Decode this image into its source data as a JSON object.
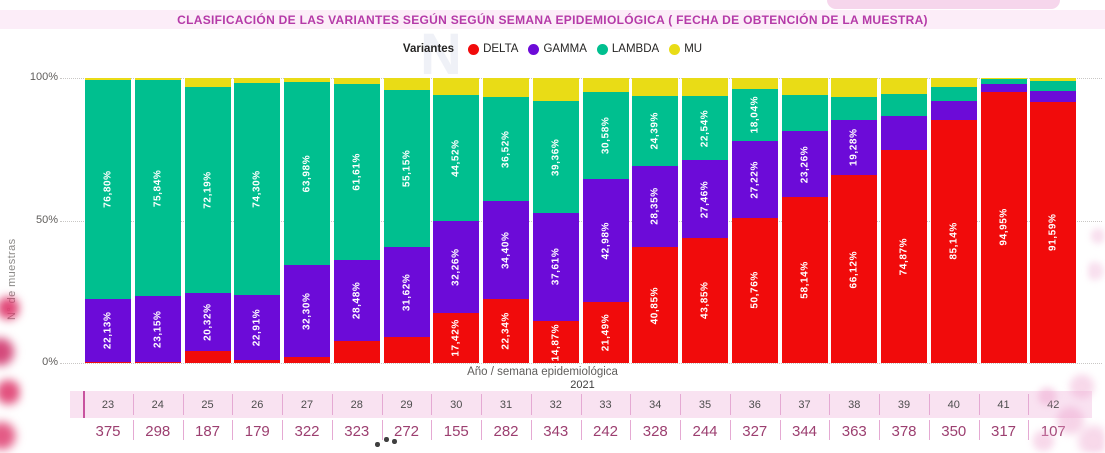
{
  "header": {
    "title": "CLASIFICACIÓN DE LAS VARIANTES SEGÚN SEGÚN SEMANA EPIDEMIOLÓGICA ( FECHA DE OBTENCIÓN DE LA MUESTRA)"
  },
  "chart_data": {
    "type": "bar",
    "subtype": "100%-stacked-column",
    "title": "CLASIFICACIÓN DE LAS VARIANTES SEGÚN SEGÚN SEMANA EPIDEMIOLÓGICA ( FECHA DE OBTENCIÓN DE LA MUESTRA)",
    "legend_title": "Variantes",
    "legend_position": "top-center",
    "ylabel": "N° de muestras",
    "xlabel": "Año / semana epidemiológica",
    "year": "2021",
    "yticks": [
      "100%",
      "50%",
      "0%"
    ],
    "ylim": [
      0,
      100
    ],
    "grid": "dotted-horizontal",
    "series_order": [
      "DELTA",
      "GAMMA",
      "LAMBDA",
      "MU"
    ],
    "colors": {
      "DELTA": "#f10b0b",
      "GAMMA": "#6c0bd8",
      "LAMBDA": "#00bf8f",
      "MU": "#e9dc16"
    },
    "categories": [
      "23",
      "24",
      "25",
      "26",
      "27",
      "28",
      "29",
      "30",
      "31",
      "32",
      "33",
      "34",
      "35",
      "36",
      "37",
      "38",
      "39",
      "40",
      "41",
      "42"
    ],
    "totals": [
      "375",
      "298",
      "187",
      "179",
      "322",
      "323",
      "272",
      "155",
      "282",
      "343",
      "242",
      "328",
      "244",
      "327",
      "344",
      "363",
      "378",
      "350",
      "317",
      "107"
    ],
    "bars": [
      {
        "week": "23",
        "n": "375",
        "values": {
          "DELTA": 0.27,
          "GAMMA": 22.13,
          "LAMBDA": 76.8,
          "MU": 0.8
        },
        "labels": {
          "GAMMA": "22,13%",
          "LAMBDA": "76,80%"
        }
      },
      {
        "week": "24",
        "n": "298",
        "values": {
          "DELTA": 0.34,
          "GAMMA": 23.15,
          "LAMBDA": 75.84,
          "MU": 0.67
        },
        "labels": {
          "GAMMA": "23,15%",
          "LAMBDA": "75,84%"
        }
      },
      {
        "week": "25",
        "n": "187",
        "values": {
          "DELTA": 4.28,
          "GAMMA": 20.32,
          "LAMBDA": 72.19,
          "MU": 3.21
        },
        "labels": {
          "GAMMA": "20,32%",
          "LAMBDA": "72,19%"
        }
      },
      {
        "week": "26",
        "n": "179",
        "values": {
          "DELTA": 1.12,
          "GAMMA": 22.91,
          "LAMBDA": 74.3,
          "MU": 1.68
        },
        "labels": {
          "GAMMA": "22,91%",
          "LAMBDA": "74,30%"
        }
      },
      {
        "week": "27",
        "n": "322",
        "values": {
          "DELTA": 2.17,
          "GAMMA": 32.3,
          "LAMBDA": 63.98,
          "MU": 1.55
        },
        "labels": {
          "GAMMA": "32,30%",
          "LAMBDA": "63,98%"
        }
      },
      {
        "week": "28",
        "n": "323",
        "values": {
          "DELTA": 7.74,
          "GAMMA": 28.48,
          "LAMBDA": 61.61,
          "MU": 2.17
        },
        "labels": {
          "GAMMA": "28,48%",
          "LAMBDA": "61,61%"
        }
      },
      {
        "week": "29",
        "n": "272",
        "values": {
          "DELTA": 9.19,
          "GAMMA": 31.62,
          "LAMBDA": 55.15,
          "MU": 4.04
        },
        "labels": {
          "GAMMA": "31,62%",
          "LAMBDA": "55,15%"
        }
      },
      {
        "week": "30",
        "n": "155",
        "values": {
          "DELTA": 17.42,
          "GAMMA": 32.26,
          "LAMBDA": 44.52,
          "MU": 5.81
        },
        "labels": {
          "DELTA": "17,42%",
          "GAMMA": "32,26%",
          "LAMBDA": "44,52%"
        }
      },
      {
        "week": "31",
        "n": "282",
        "values": {
          "DELTA": 22.34,
          "GAMMA": 34.4,
          "LAMBDA": 36.52,
          "MU": 6.74
        },
        "labels": {
          "DELTA": "22,34%",
          "GAMMA": "34,40%",
          "LAMBDA": "36,52%"
        }
      },
      {
        "week": "32",
        "n": "343",
        "values": {
          "DELTA": 14.87,
          "GAMMA": 37.61,
          "LAMBDA": 39.36,
          "MU": 8.16
        },
        "labels": {
          "DELTA": "14,87%",
          "GAMMA": "37,61%",
          "LAMBDA": "39,36%"
        }
      },
      {
        "week": "33",
        "n": "242",
        "values": {
          "DELTA": 21.49,
          "GAMMA": 42.98,
          "LAMBDA": 30.58,
          "MU": 4.95
        },
        "labels": {
          "DELTA": "21,49%",
          "GAMMA": "42,98%",
          "LAMBDA": "30,58%"
        }
      },
      {
        "week": "34",
        "n": "328",
        "values": {
          "DELTA": 40.85,
          "GAMMA": 28.35,
          "LAMBDA": 24.39,
          "MU": 6.41
        },
        "labels": {
          "DELTA": "40,85%",
          "GAMMA": "28,35%",
          "LAMBDA": "24,39%"
        }
      },
      {
        "week": "35",
        "n": "244",
        "values": {
          "DELTA": 43.85,
          "GAMMA": 27.46,
          "LAMBDA": 22.54,
          "MU": 6.15
        },
        "labels": {
          "DELTA": "43,85%",
          "GAMMA": "27,46%",
          "LAMBDA": "22,54%"
        }
      },
      {
        "week": "36",
        "n": "327",
        "values": {
          "DELTA": 50.76,
          "GAMMA": 27.22,
          "LAMBDA": 18.04,
          "MU": 3.98
        },
        "labels": {
          "DELTA": "50,76%",
          "GAMMA": "27,22%",
          "LAMBDA": "18,04%"
        }
      },
      {
        "week": "37",
        "n": "344",
        "values": {
          "DELTA": 58.14,
          "GAMMA": 23.26,
          "LAMBDA": 12.5,
          "MU": 6.1
        },
        "labels": {
          "DELTA": "58,14%",
          "GAMMA": "23,26%"
        }
      },
      {
        "week": "38",
        "n": "363",
        "values": {
          "DELTA": 66.12,
          "GAMMA": 19.28,
          "LAMBDA": 7.99,
          "MU": 6.61
        },
        "labels": {
          "DELTA": "66,12%",
          "GAMMA": "19,28%"
        }
      },
      {
        "week": "39",
        "n": "378",
        "values": {
          "DELTA": 74.87,
          "GAMMA": 11.64,
          "LAMBDA": 7.94,
          "MU": 5.55
        },
        "labels": {
          "DELTA": "74,87%"
        }
      },
      {
        "week": "40",
        "n": "350",
        "values": {
          "DELTA": 85.14,
          "GAMMA": 6.86,
          "LAMBDA": 4.86,
          "MU": 3.14
        },
        "labels": {
          "DELTA": "85,14%"
        }
      },
      {
        "week": "41",
        "n": "317",
        "values": {
          "DELTA": 94.95,
          "GAMMA": 2.84,
          "LAMBDA": 1.89,
          "MU": 0.32
        },
        "labels": {
          "DELTA": "94,95%"
        }
      },
      {
        "week": "42",
        "n": "107",
        "values": {
          "DELTA": 91.59,
          "GAMMA": 3.74,
          "LAMBDA": 3.74,
          "MU": 0.93
        },
        "labels": {
          "DELTA": "91,59%"
        }
      }
    ]
  },
  "pagination": {
    "dot_count": 3
  }
}
